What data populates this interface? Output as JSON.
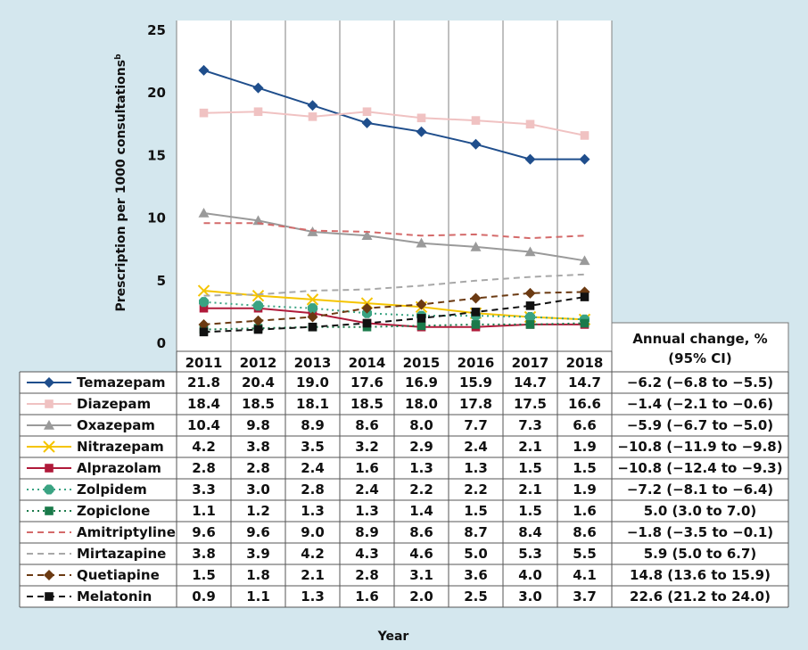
{
  "chart_data": {
    "type": "line",
    "ylabel": "Prescription per 1000 consultations",
    "ylabel_superscript": "b",
    "xlabel": "Year",
    "yticks": [
      "0",
      "5",
      "10",
      "15",
      "20",
      "25"
    ],
    "ylim": [
      0,
      25
    ],
    "categories": [
      "2011",
      "2012",
      "2013",
      "2014",
      "2015",
      "2016",
      "2017",
      "2018"
    ],
    "grid": "vertical",
    "change_header": [
      "Annual change, %",
      "(95% CI)"
    ],
    "series": [
      {
        "name": "Temazepam",
        "values": [
          21.8,
          20.4,
          19.0,
          17.6,
          16.9,
          15.9,
          14.7,
          14.7
        ],
        "labels": [
          "21.8",
          "20.4",
          "19.0",
          "17.6",
          "16.9",
          "15.9",
          "14.7",
          "14.7"
        ],
        "change": "−6.2 (−6.8 to −5.5)",
        "color": "#1f4e8c",
        "dash": "solid",
        "marker": "diamond"
      },
      {
        "name": "Diazepam",
        "values": [
          18.4,
          18.5,
          18.1,
          18.5,
          18.0,
          17.8,
          17.5,
          16.6
        ],
        "labels": [
          "18.4",
          "18.5",
          "18.1",
          "18.5",
          "18.0",
          "17.8",
          "17.5",
          "16.6"
        ],
        "change": "−1.4 (−2.1 to  −0.6)",
        "color": "#f0c2c2",
        "dash": "solid",
        "marker": "square"
      },
      {
        "name": "Oxazepam",
        "values": [
          10.4,
          9.8,
          8.9,
          8.6,
          8.0,
          7.7,
          7.3,
          6.6
        ],
        "labels": [
          "10.4",
          "9.8",
          "8.9",
          "8.6",
          "8.0",
          "7.7",
          "7.3",
          "6.6"
        ],
        "change": "−5.9 (−6.7 to −5.0)",
        "color": "#9a9a9a",
        "dash": "solid",
        "marker": "triangle"
      },
      {
        "name": "Nitrazepam",
        "values": [
          4.2,
          3.8,
          3.5,
          3.2,
          2.9,
          2.4,
          2.1,
          1.9
        ],
        "labels": [
          "4.2",
          "3.8",
          "3.5",
          "3.2",
          "2.9",
          "2.4",
          "2.1",
          "1.9"
        ],
        "change": "−10.8 (−11.9 to −9.8)",
        "color": "#f5c400",
        "dash": "solid",
        "marker": "x"
      },
      {
        "name": "Alprazolam",
        "values": [
          2.8,
          2.8,
          2.4,
          1.6,
          1.3,
          1.3,
          1.5,
          1.5
        ],
        "labels": [
          "2.8",
          "2.8",
          "2.4",
          "1.6",
          "1.3",
          "1.3",
          "1.5",
          "1.5"
        ],
        "change": "−10.8 (−12.4 to −9.3)",
        "color": "#b01a3a",
        "dash": "solid",
        "marker": "square"
      },
      {
        "name": "Zolpidem",
        "values": [
          3.3,
          3.0,
          2.8,
          2.4,
          2.2,
          2.2,
          2.1,
          1.9
        ],
        "labels": [
          "3.3",
          "3.0",
          "2.8",
          "2.4",
          "2.2",
          "2.2",
          "2.1",
          "1.9"
        ],
        "change": "−7.2 (−8.1 to −6.4)",
        "color": "#3aa382",
        "dash": "dotted",
        "marker": "octagon"
      },
      {
        "name": "Zopiclone",
        "values": [
          1.1,
          1.2,
          1.3,
          1.3,
          1.4,
          1.5,
          1.5,
          1.6
        ],
        "labels": [
          "1.1",
          "1.2",
          "1.3",
          "1.3",
          "1.4",
          "1.5",
          "1.5",
          "1.6"
        ],
        "change": "5.0 (3.0 to 7.0)",
        "color": "#1a7a4a",
        "dash": "dotted",
        "marker": "square"
      },
      {
        "name": "Amitriptyline",
        "values": [
          9.6,
          9.6,
          9.0,
          8.9,
          8.6,
          8.7,
          8.4,
          8.6
        ],
        "labels": [
          "9.6",
          "9.6",
          "9.0",
          "8.9",
          "8.6",
          "8.7",
          "8.4",
          "8.6"
        ],
        "change": "−1.8 (−3.5 to −0.1)",
        "color": "#d46a6a",
        "dash": "dashed",
        "marker": "none"
      },
      {
        "name": "Mirtazapine",
        "values": [
          3.8,
          3.9,
          4.2,
          4.3,
          4.6,
          5.0,
          5.3,
          5.5
        ],
        "labels": [
          "3.8",
          "3.9",
          "4.2",
          "4.3",
          "4.6",
          "5.0",
          "5.3",
          "5.5"
        ],
        "change": "5.9 (5.0 to 6.7)",
        "color": "#a8a8a8",
        "dash": "dashed",
        "marker": "none"
      },
      {
        "name": "Quetiapine",
        "values": [
          1.5,
          1.8,
          2.1,
          2.8,
          3.1,
          3.6,
          4.0,
          4.1
        ],
        "labels": [
          "1.5",
          "1.8",
          "2.1",
          "2.8",
          "3.1",
          "3.6",
          "4.0",
          "4.1"
        ],
        "change": "14.8 (13.6 to 15.9)",
        "color": "#6b3a12",
        "dash": "dashed",
        "marker": "diamond"
      },
      {
        "name": "Melatonin",
        "values": [
          0.9,
          1.1,
          1.3,
          1.6,
          2.0,
          2.5,
          3.0,
          3.7
        ],
        "labels": [
          "0.9",
          "1.1",
          "1.3",
          "1.6",
          "2.0",
          "2.5",
          "3.0",
          "3.7"
        ],
        "change": "22.6 (21.2 to 24.0)",
        "color": "#111111",
        "dash": "dashed",
        "marker": "square"
      }
    ]
  }
}
